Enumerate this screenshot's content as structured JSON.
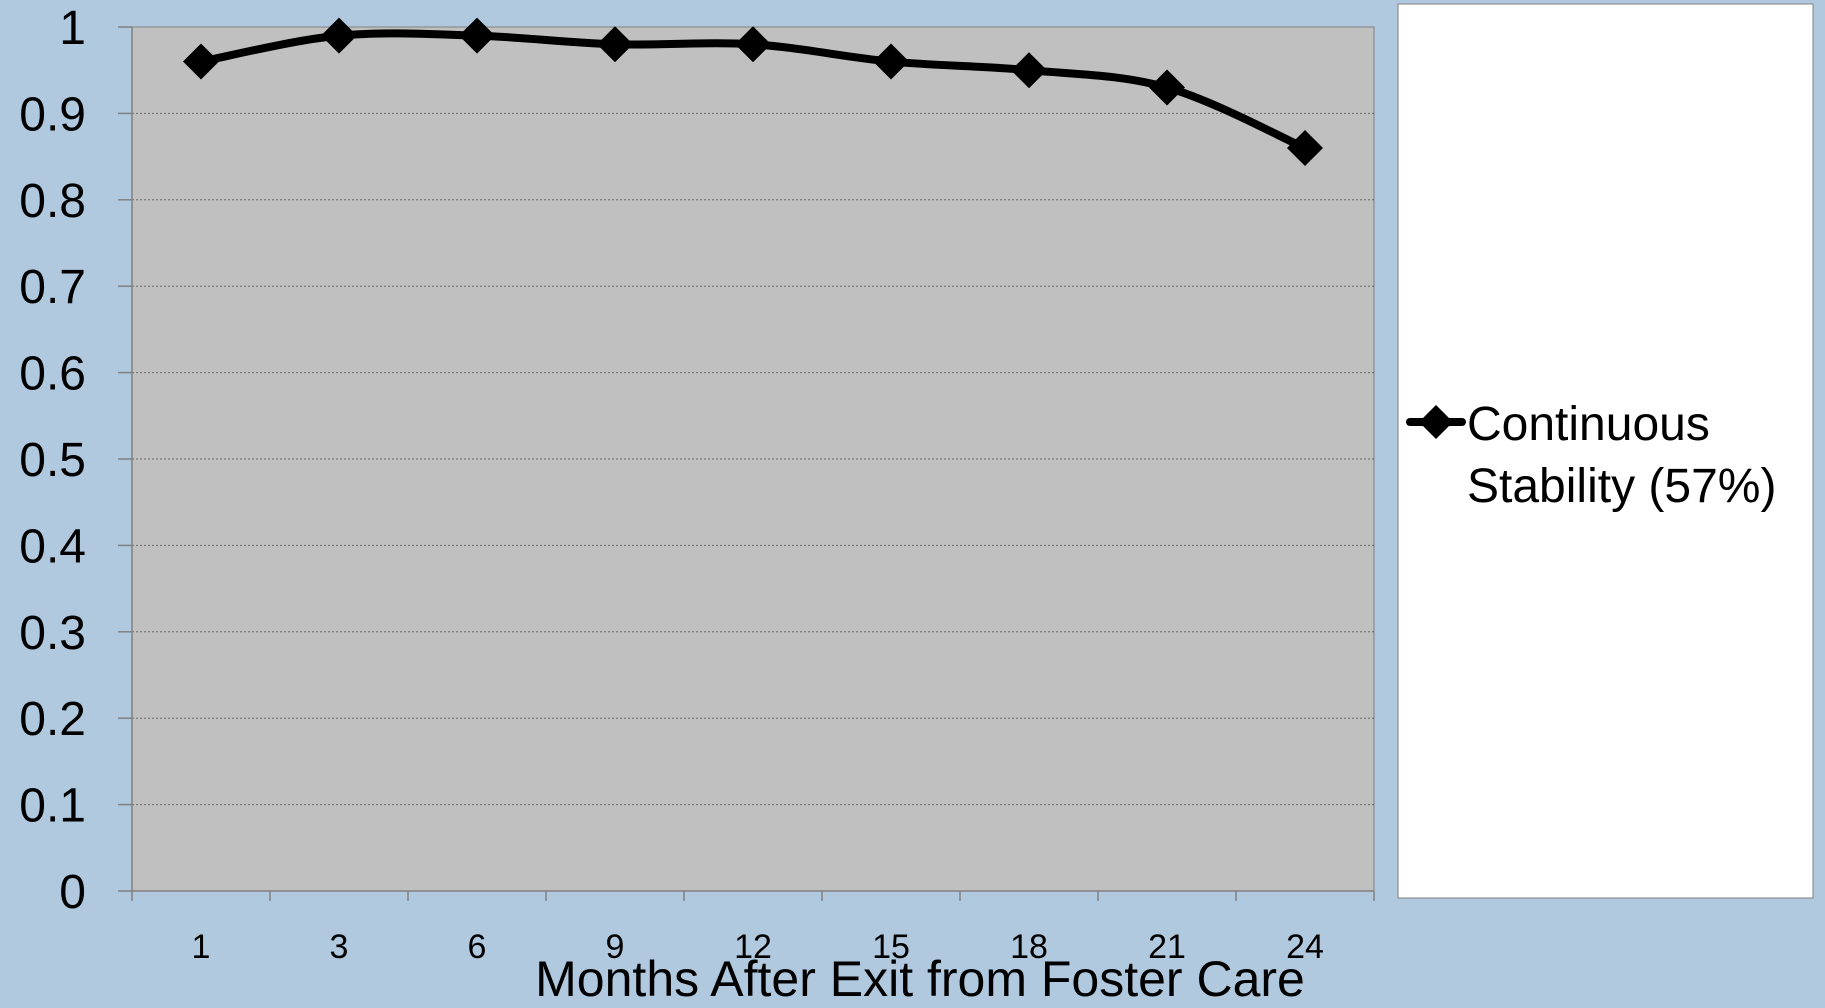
{
  "chart_data": {
    "type": "line",
    "title": "",
    "xlabel": "Months After Exit from Foster Care",
    "ylabel": "",
    "categories": [
      "1",
      "3",
      "6",
      "9",
      "12",
      "15",
      "18",
      "21",
      "24"
    ],
    "series": [
      {
        "name": "Continuous Stability (57%)",
        "values": [
          0.96,
          0.99,
          0.99,
          0.98,
          0.98,
          0.96,
          0.95,
          0.93,
          0.86
        ]
      }
    ],
    "ylim": [
      0,
      1
    ],
    "yticks": [
      "0",
      "0.1",
      "0.2",
      "0.3",
      "0.4",
      "0.5",
      "0.6",
      "0.7",
      "0.8",
      "0.9",
      "1"
    ],
    "grid": true,
    "legend_position": "right",
    "legend_lines": [
      "Continuous",
      "Stability (57%)"
    ],
    "colors": {
      "background": "#b0c9df",
      "plot_area": "#c0c0c0",
      "legend_box": "#ffffff",
      "series": "#000000"
    },
    "marker": "diamond"
  }
}
